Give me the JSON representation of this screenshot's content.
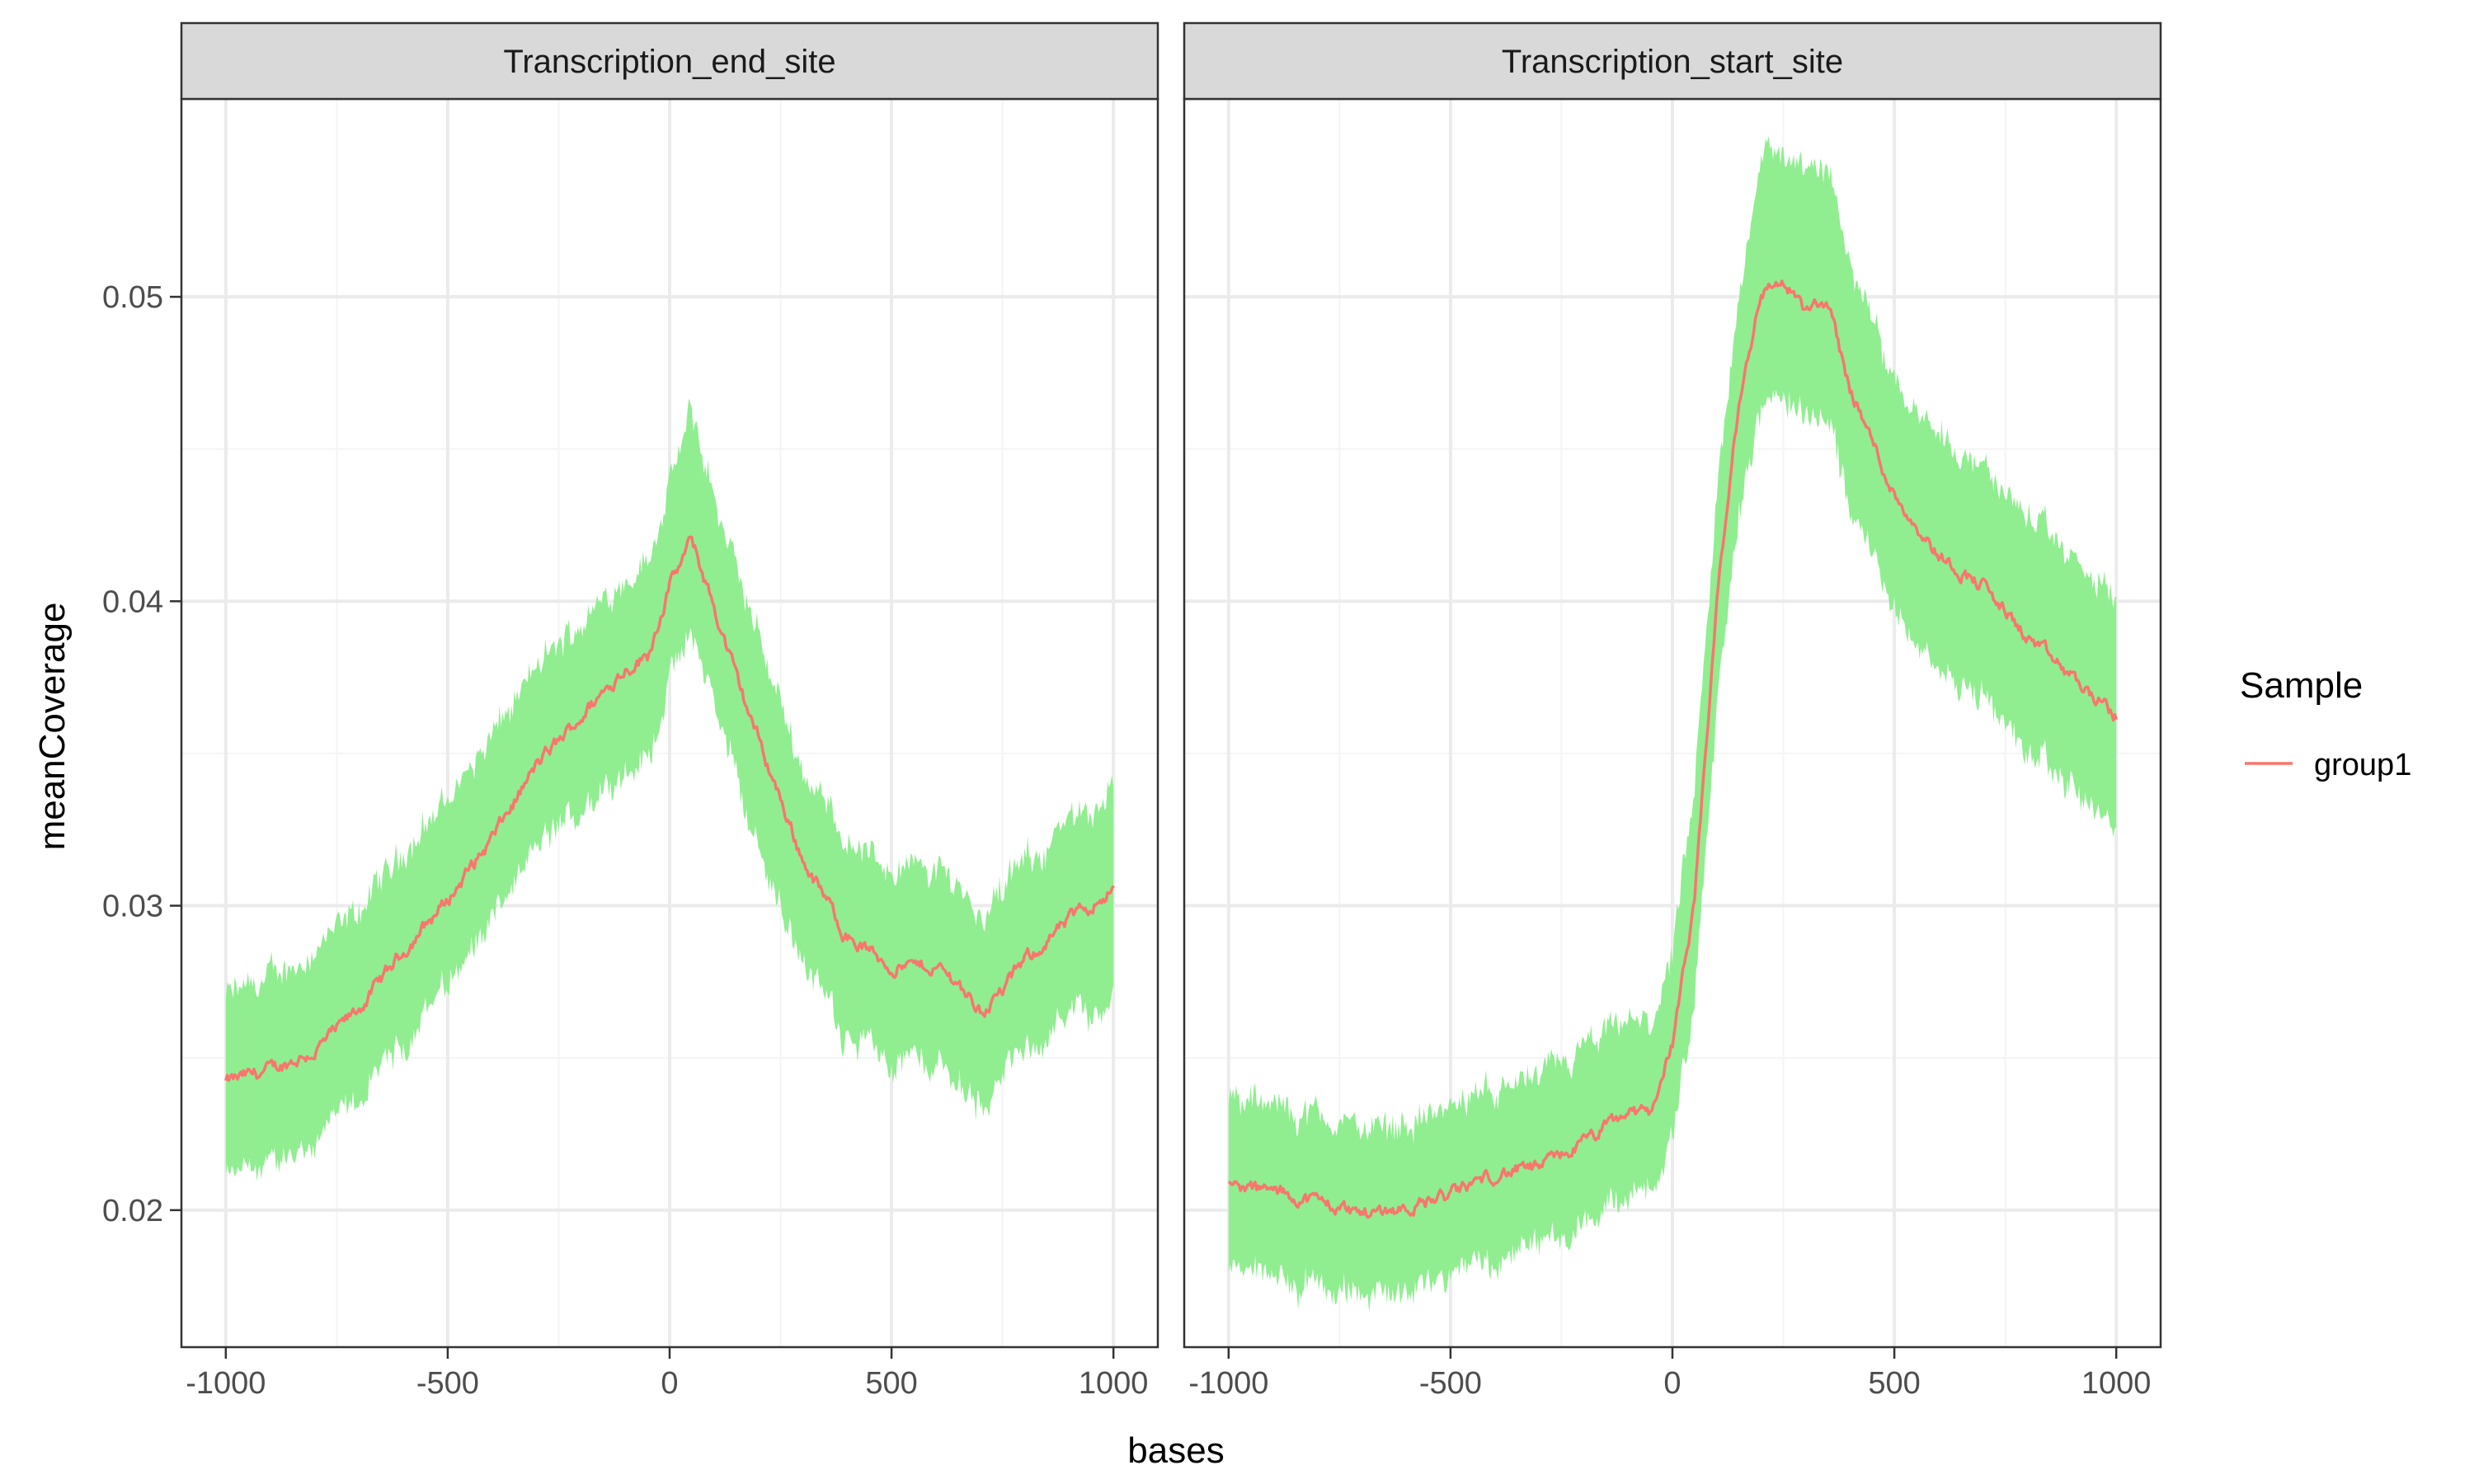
{
  "chart_data": [
    {
      "type": "area",
      "facet_label": "Transcription_end_site",
      "xlim": [
        -1100,
        1100
      ],
      "ylim": [
        0.0155,
        0.0565
      ],
      "xticks": [
        -1000,
        -500,
        0,
        500,
        1000
      ],
      "yticks": [
        0.02,
        0.03,
        0.04,
        0.05
      ],
      "grid": true,
      "series": [
        {
          "name": "group1",
          "x": [
            -1000,
            -900,
            -800,
            -700,
            -600,
            -500,
            -400,
            -300,
            -200,
            -100,
            -50,
            0,
            50,
            100,
            150,
            200,
            300,
            400,
            500,
            600,
            650,
            700,
            750,
            800,
            900,
            1000
          ],
          "mean": [
            0.0242,
            0.0246,
            0.0252,
            0.0266,
            0.0285,
            0.0302,
            0.0322,
            0.0346,
            0.0362,
            0.0378,
            0.0382,
            0.0405,
            0.042,
            0.0398,
            0.0375,
            0.0355,
            0.0315,
            0.029,
            0.028,
            0.028,
            0.0275,
            0.0265,
            0.0272,
            0.0282,
            0.0295,
            0.0306
          ],
          "lower": [
            0.021,
            0.0215,
            0.0222,
            0.0236,
            0.0255,
            0.0275,
            0.0295,
            0.0318,
            0.0332,
            0.0345,
            0.0348,
            0.0375,
            0.0388,
            0.0368,
            0.0342,
            0.0318,
            0.0282,
            0.0258,
            0.025,
            0.0248,
            0.0242,
            0.0234,
            0.0244,
            0.0252,
            0.0263,
            0.027
          ],
          "upper": [
            0.027,
            0.0276,
            0.0285,
            0.0298,
            0.0318,
            0.0335,
            0.0355,
            0.0378,
            0.0393,
            0.0408,
            0.0413,
            0.0438,
            0.0462,
            0.0434,
            0.041,
            0.0388,
            0.0345,
            0.0322,
            0.0312,
            0.0312,
            0.0308,
            0.0297,
            0.0305,
            0.0314,
            0.0326,
            0.034
          ]
        }
      ]
    },
    {
      "type": "area",
      "facet_label": "Transcription_start_site",
      "xlim": [
        -1100,
        1100
      ],
      "ylim": [
        0.0155,
        0.0565
      ],
      "xticks": [
        -1000,
        -500,
        0,
        500,
        1000
      ],
      "yticks": [
        0.02,
        0.03,
        0.04,
        0.05
      ],
      "grid": true,
      "series": [
        {
          "name": "group1",
          "x": [
            -1000,
            -900,
            -800,
            -700,
            -600,
            -500,
            -400,
            -300,
            -200,
            -100,
            -50,
            0,
            50,
            100,
            150,
            200,
            250,
            300,
            350,
            400,
            500,
            600,
            700,
            800,
            900,
            1000
          ],
          "mean": [
            0.0208,
            0.0206,
            0.0203,
            0.0199,
            0.0201,
            0.0205,
            0.0212,
            0.0214,
            0.0222,
            0.0232,
            0.0232,
            0.0255,
            0.03,
            0.04,
            0.0465,
            0.0502,
            0.0505,
            0.0495,
            0.0498,
            0.047,
            0.0435,
            0.0415,
            0.0405,
            0.0388,
            0.0375,
            0.0362
          ],
          "lower": [
            0.018,
            0.0178,
            0.0175,
            0.0172,
            0.0174,
            0.0178,
            0.0184,
            0.0187,
            0.0194,
            0.0204,
            0.0205,
            0.0225,
            0.0265,
            0.0365,
            0.043,
            0.0465,
            0.0468,
            0.0458,
            0.046,
            0.0432,
            0.0398,
            0.0378,
            0.0368,
            0.035,
            0.0338,
            0.0325
          ],
          "upper": [
            0.0236,
            0.0234,
            0.0231,
            0.0227,
            0.0229,
            0.0233,
            0.024,
            0.0243,
            0.0252,
            0.0262,
            0.026,
            0.0285,
            0.0335,
            0.0435,
            0.05,
            0.0548,
            0.0548,
            0.054,
            0.0542,
            0.0512,
            0.0474,
            0.0455,
            0.0444,
            0.0428,
            0.0414,
            0.04
          ]
        }
      ]
    }
  ],
  "axes": {
    "xlabel": "bases",
    "ylabel": "meanCoverage"
  },
  "legend": {
    "title": "Sample",
    "placement": "right",
    "items": [
      {
        "label": "group1",
        "color": "#F8766D"
      }
    ]
  },
  "colors": {
    "line": "#F8766D",
    "ribbon": "#90EE90",
    "strip": "#D9D9D9",
    "grid_major": "#EBEBEB",
    "grid_minor": "#F4F4F4"
  }
}
